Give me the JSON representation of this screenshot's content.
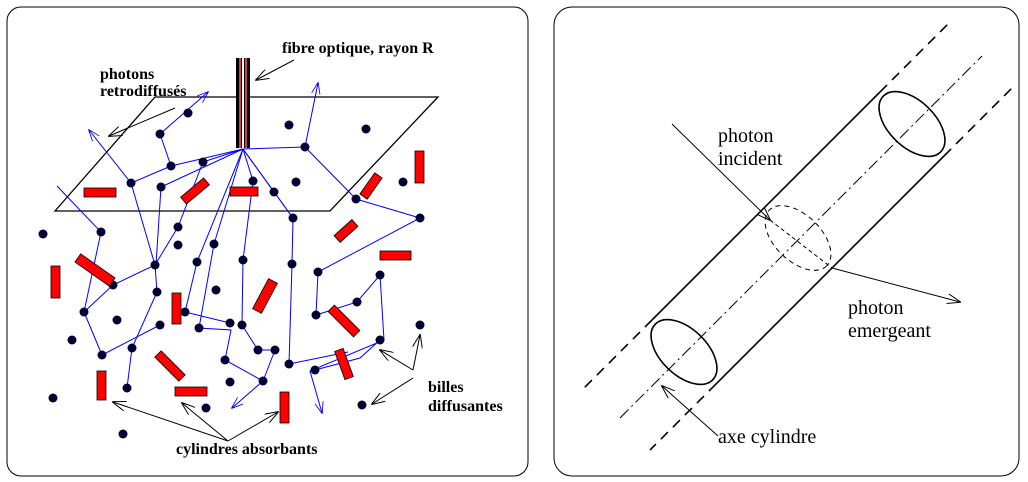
{
  "left_panel": {
    "labels": {
      "fiber": "fibre optique, rayon R",
      "backscattered_1": "photons",
      "backscattered_2": "retrodiffusés",
      "beads_1": "billes",
      "beads_2": "diffusantes",
      "cylinders": "cylindres absorbants"
    },
    "colors": {
      "photon_path": "#0000ff",
      "absorber": "#ff0000",
      "bead": "#000033",
      "fiber_core": "#d44040"
    }
  },
  "right_panel": {
    "labels": {
      "incident_1": "photon",
      "incident_2": "incident",
      "emergent_1": "photon",
      "emergent_2": "emergeant",
      "axis": "axe cylindre"
    }
  }
}
